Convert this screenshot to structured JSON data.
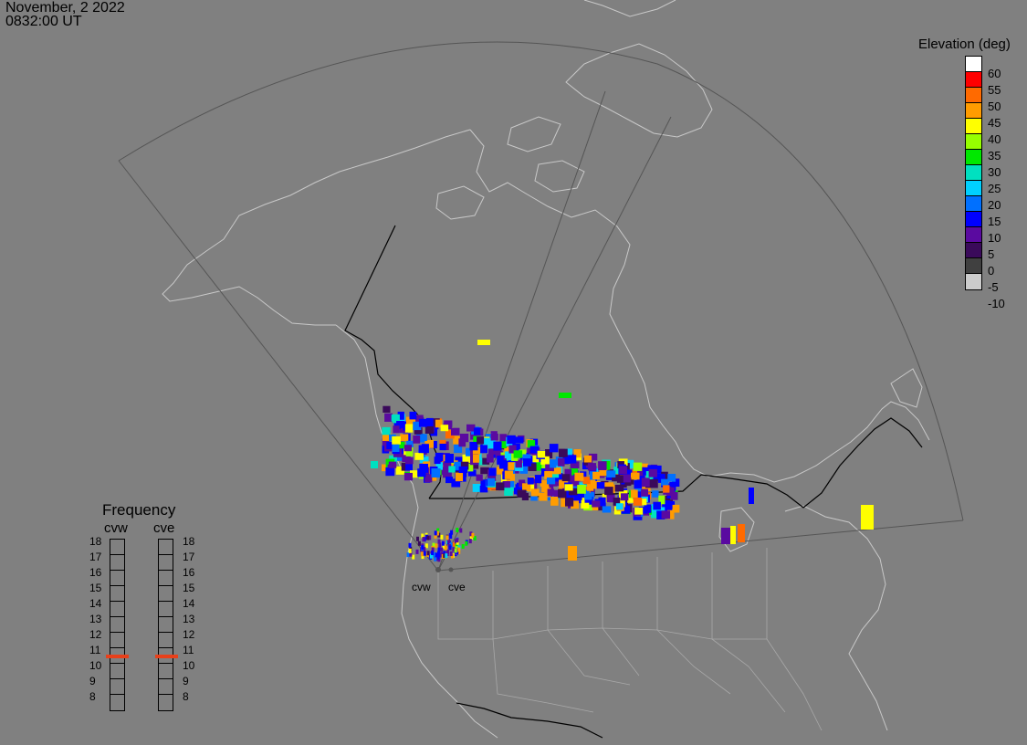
{
  "header": {
    "date": "November, 2 2022",
    "time": "0832:00 UT"
  },
  "legend": {
    "title": "Elevation (deg)",
    "scale": [
      {
        "label": "60",
        "color": "#ffffff"
      },
      {
        "label": "55",
        "color": "#ff0000"
      },
      {
        "label": "50",
        "color": "#ff6a00"
      },
      {
        "label": "45",
        "color": "#ff9c00"
      },
      {
        "label": "40",
        "color": "#ffff00"
      },
      {
        "label": "35",
        "color": "#96ff00"
      },
      {
        "label": "30",
        "color": "#00e800"
      },
      {
        "label": "25",
        "color": "#00e0c0"
      },
      {
        "label": "20",
        "color": "#00d0ff"
      },
      {
        "label": "15",
        "color": "#0070ff"
      },
      {
        "label": "10",
        "color": "#0000ff"
      },
      {
        "label": "5",
        "color": "#5a0aa0"
      },
      {
        "label": "0",
        "color": "#3a0a5a"
      },
      {
        "label": "-5",
        "color": "#404040"
      },
      {
        "label": "-10",
        "color": "#cccccc"
      }
    ]
  },
  "frequency": {
    "title": "Frequency",
    "radars": [
      {
        "name": "cvw",
        "mhz": 10.9
      },
      {
        "name": "cve",
        "mhz": 10.9
      }
    ],
    "ticks": [
      "18",
      "17",
      "16",
      "15",
      "14",
      "13",
      "12",
      "11",
      "10",
      "9",
      "8"
    ],
    "marker_color": "#e8401a"
  },
  "sites": [
    "cvw",
    "cve"
  ],
  "map": {
    "background": "#808080",
    "coast_color": "#c8c8c8",
    "border_color": "#000000",
    "fov_color": "#555555"
  }
}
